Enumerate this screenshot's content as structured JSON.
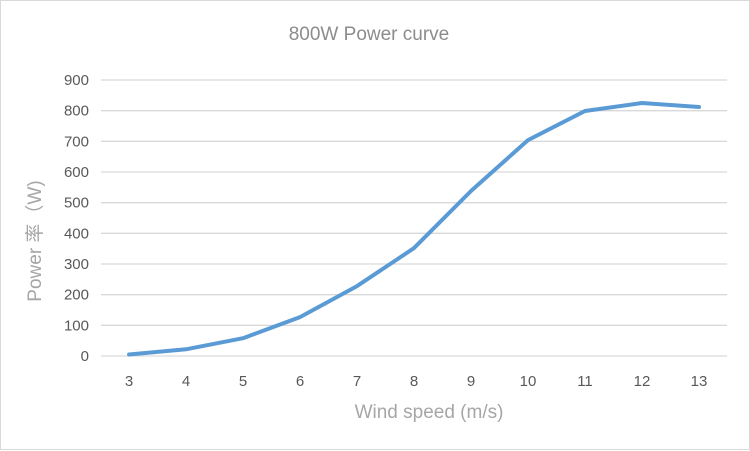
{
  "chart_data": {
    "type": "line",
    "title": "800W Power curve",
    "xlabel": "Wind speed (m/s)",
    "ylabel": "Power 率（W)",
    "categories": [
      3,
      4,
      5,
      6,
      7,
      8,
      9,
      10,
      11,
      12,
      13
    ],
    "series": [
      {
        "name": "Power",
        "values": [
          5,
          22,
          58,
          127,
          228,
          352,
          538,
          704,
          799,
          825,
          812
        ],
        "color": "#5b9bd5"
      }
    ],
    "ylim": [
      0,
      900
    ],
    "yticks": [
      0,
      100,
      200,
      300,
      400,
      500,
      600,
      700,
      800,
      900
    ],
    "xticks": [
      "3",
      "4",
      "5",
      "6",
      "7",
      "8",
      "9",
      "10",
      "11",
      "12",
      "13"
    ],
    "grid": true,
    "legend": null
  }
}
